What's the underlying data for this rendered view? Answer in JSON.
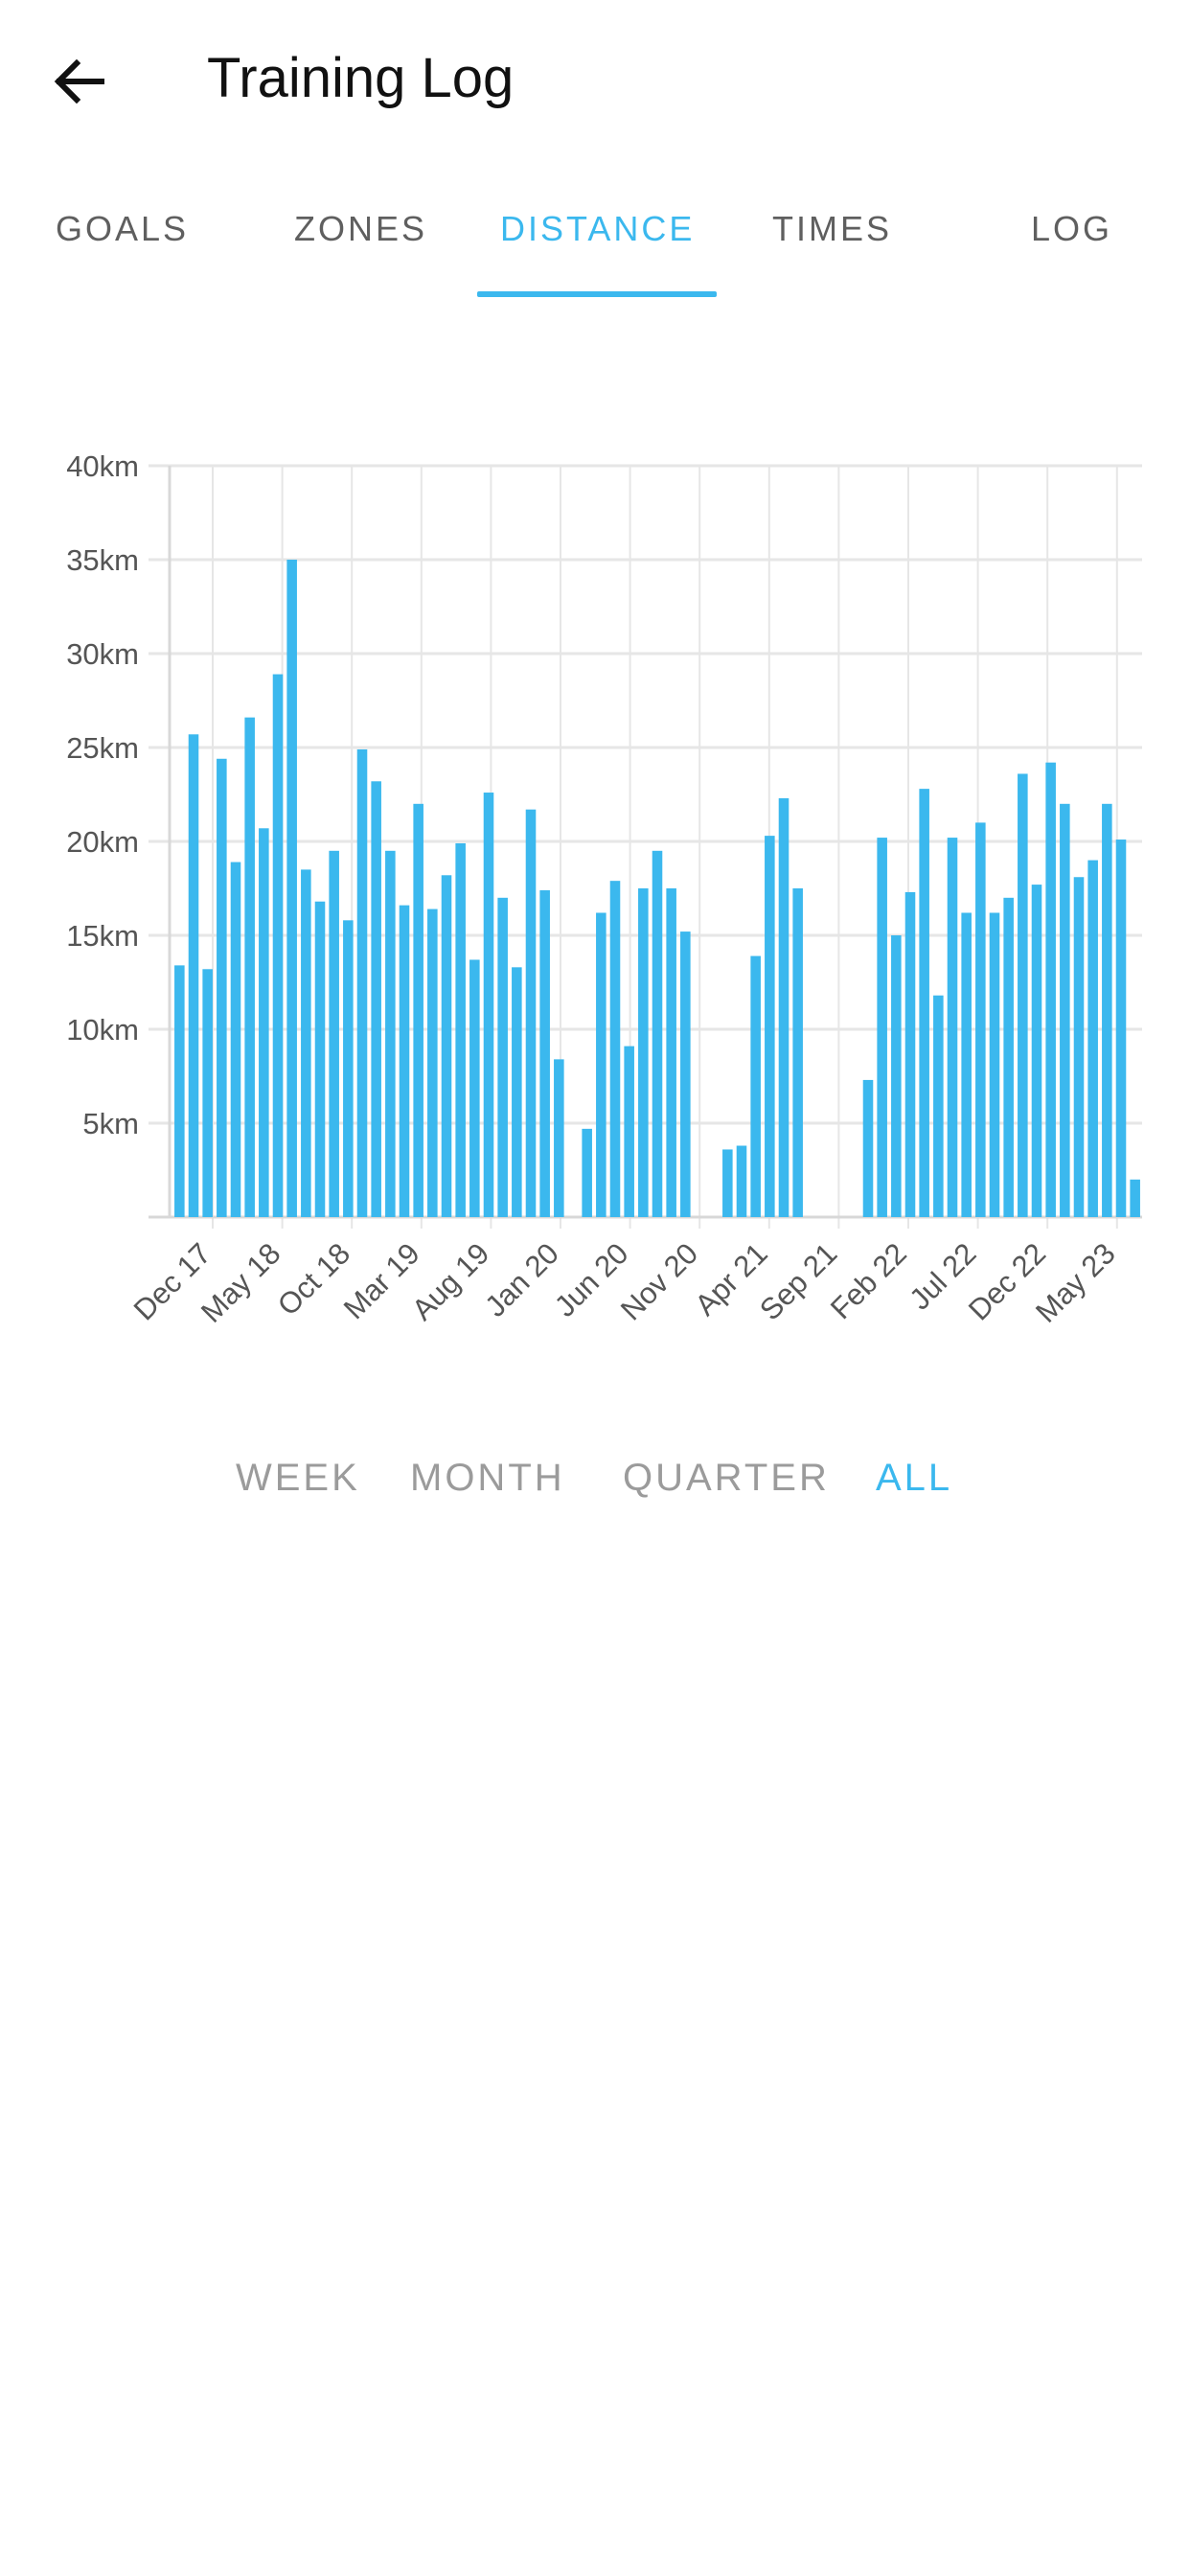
{
  "app_bar": {
    "title": "Training Log",
    "back_icon": "arrow-left-icon"
  },
  "tabs": [
    {
      "label": "GOALS",
      "active": false
    },
    {
      "label": "ZONES",
      "active": false
    },
    {
      "label": "DISTANCE",
      "active": true
    },
    {
      "label": "TIMES",
      "active": false
    },
    {
      "label": "LOG",
      "active": false
    }
  ],
  "range_options": [
    {
      "label": "WEEK",
      "active": false
    },
    {
      "label": "MONTH",
      "active": false
    },
    {
      "label": "QUARTER",
      "active": false
    },
    {
      "label": "ALL",
      "active": true
    }
  ],
  "colors": {
    "accent": "#3bb8ee",
    "bar": "#3bb8ee",
    "grid": "#e6e6e6"
  },
  "chart_data": {
    "type": "bar",
    "title": "",
    "xlabel": "",
    "ylabel": "",
    "ylim": [
      0,
      40
    ],
    "y_unit": "km",
    "y_ticks": [
      "5km",
      "10km",
      "15km",
      "20km",
      "25km",
      "30km",
      "35km",
      "40km"
    ],
    "x_tick_labels": [
      "Dec 17",
      "May 18",
      "Oct 18",
      "Mar 19",
      "Aug 19",
      "Jan 20",
      "Jun 20",
      "Nov 20",
      "Apr 21",
      "Sep 21",
      "Feb 22",
      "Jul 22",
      "Dec 22",
      "May 23"
    ],
    "grid": true,
    "series": [
      {
        "values": [
          13.4,
          25.7,
          13.2,
          24.4,
          18.9,
          26.6,
          20.7,
          28.9,
          35.0,
          18.5,
          16.8,
          19.5,
          15.8,
          24.9,
          23.2,
          19.5,
          16.6,
          22.0,
          16.4,
          18.2,
          19.9,
          13.7,
          22.6,
          17.0,
          13.3,
          21.7,
          17.4,
          8.4,
          0,
          4.7,
          16.2,
          17.9,
          9.1,
          17.5,
          19.5,
          17.5,
          15.2,
          0,
          0,
          3.6,
          3.8,
          13.9,
          20.3,
          22.3,
          17.5,
          0,
          0,
          0,
          0,
          7.3,
          20.2,
          15.0,
          17.3,
          22.8,
          11.8,
          20.2,
          16.2,
          21.0,
          16.2,
          17.0,
          23.6,
          17.7,
          24.2,
          22.0,
          18.1,
          19.0,
          22.0,
          20.1,
          2.0
        ]
      }
    ]
  }
}
